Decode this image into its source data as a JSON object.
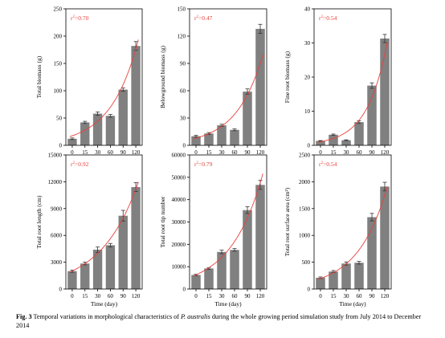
{
  "caption": {
    "figure_number": "Fig. 3",
    "text_before": "Temporal variations in morphological characteristics of ",
    "species": "P. australis",
    "text_after": " during the whole growing period simulation study from July 2014 to December 2014"
  },
  "colors": {
    "bar": "#808080",
    "fit_curve": "#e8413a",
    "r2_text": "#e8413a",
    "axis": "#000000"
  },
  "chart_data": [
    {
      "type": "bar",
      "categories": [
        "0",
        "15",
        "30",
        "60",
        "90",
        "120"
      ],
      "values": [
        12,
        42,
        58,
        54,
        102,
        182
      ],
      "errors": [
        1.5,
        2,
        3,
        2.5,
        3,
        8
      ],
      "fit_curve": true,
      "annotation": {
        "prefix": "r",
        "sup": "2",
        "suffix": "=0.70"
      },
      "ylabel": "Total biomass (g)",
      "xlabel": "",
      "ylim": [
        0,
        250
      ],
      "yticks": [
        0,
        50,
        100,
        150,
        200,
        250
      ],
      "yticks_text": [
        "0",
        "50",
        "100",
        "150",
        "200",
        "250"
      ]
    },
    {
      "type": "bar",
      "categories": [
        "0",
        "15",
        "30",
        "60",
        "90",
        "120"
      ],
      "values": [
        10,
        13,
        22,
        17,
        59,
        128
      ],
      "errors": [
        1,
        1,
        1.2,
        1,
        3,
        5
      ],
      "fit_curve": true,
      "annotation": {
        "prefix": "r",
        "sup": "2",
        "suffix": "=0.47"
      },
      "ylabel": "Belowground biomass (g)",
      "xlabel": "",
      "ylim": [
        0,
        150
      ],
      "yticks": [
        0,
        30,
        60,
        90,
        120,
        150
      ],
      "yticks_text": [
        "0",
        "30",
        "60",
        "90",
        "120",
        "150"
      ]
    },
    {
      "type": "bar",
      "categories": [
        "0",
        "15",
        "30",
        "60",
        "90",
        "120"
      ],
      "values": [
        1.3,
        3.1,
        1.5,
        6.8,
        17.5,
        31.3
      ],
      "errors": [
        0.1,
        0.2,
        0.1,
        0.4,
        0.8,
        1.2
      ],
      "fit_curve": true,
      "annotation": {
        "prefix": "r",
        "sup": "2",
        "suffix": "=0.54"
      },
      "ylabel": "Fine root biomass (g)",
      "xlabel": "",
      "ylim": [
        0,
        40
      ],
      "yticks": [
        0,
        10,
        20,
        30,
        40
      ],
      "yticks_text": [
        "0",
        "10",
        "20",
        "30",
        "40"
      ]
    },
    {
      "type": "bar",
      "categories": [
        "0",
        "15",
        "30",
        "60",
        "90",
        "120"
      ],
      "values": [
        2000,
        2850,
        4400,
        4900,
        8200,
        11400
      ],
      "errors": [
        120,
        150,
        300,
        200,
        600,
        500
      ],
      "fit_curve": true,
      "annotation": {
        "prefix": "r",
        "sup": "2",
        "suffix": "=0.92"
      },
      "ylabel": "Total root length (cm)",
      "xlabel": "Time (day)",
      "ylim": [
        0,
        15000
      ],
      "yticks": [
        0,
        3000,
        6000,
        9000,
        12000,
        15000
      ],
      "yticks_text": [
        "0",
        "3000",
        "6000",
        "9000",
        "12000",
        "15000"
      ]
    },
    {
      "type": "bar",
      "categories": [
        "0",
        "15",
        "30",
        "60",
        "90",
        "120"
      ],
      "values": [
        6300,
        9200,
        16600,
        17500,
        35300,
        46600
      ],
      "errors": [
        300,
        400,
        800,
        600,
        1500,
        2000
      ],
      "fit_curve": true,
      "annotation": {
        "prefix": "r",
        "sup": "2",
        "suffix": "=0.79"
      },
      "ylabel": "Total root tip number",
      "xlabel": "Time (day)",
      "ylim": [
        0,
        60000
      ],
      "yticks": [
        0,
        10000,
        20000,
        30000,
        40000,
        50000,
        60000
      ],
      "yticks_text": [
        "0",
        "10000",
        "20000",
        "30000",
        "40000",
        "50000",
        "60000"
      ]
    },
    {
      "type": "bar",
      "categories": [
        "0",
        "15",
        "30",
        "60",
        "90",
        "120"
      ],
      "values": [
        210,
        325,
        475,
        490,
        1340,
        1910
      ],
      "errors": [
        15,
        20,
        30,
        25,
        70,
        80
      ],
      "fit_curve": true,
      "annotation": {
        "prefix": "r",
        "sup": "2",
        "suffix": "=0.54"
      },
      "ylabel": "Total root surface area (cm²)",
      "xlabel": "Time (day)",
      "ylim": [
        0,
        2500
      ],
      "yticks": [
        0,
        500,
        1000,
        1500,
        2000,
        2500
      ],
      "yticks_text": [
        "0",
        "500",
        "1000",
        "1500",
        "2000",
        "2500"
      ]
    }
  ]
}
